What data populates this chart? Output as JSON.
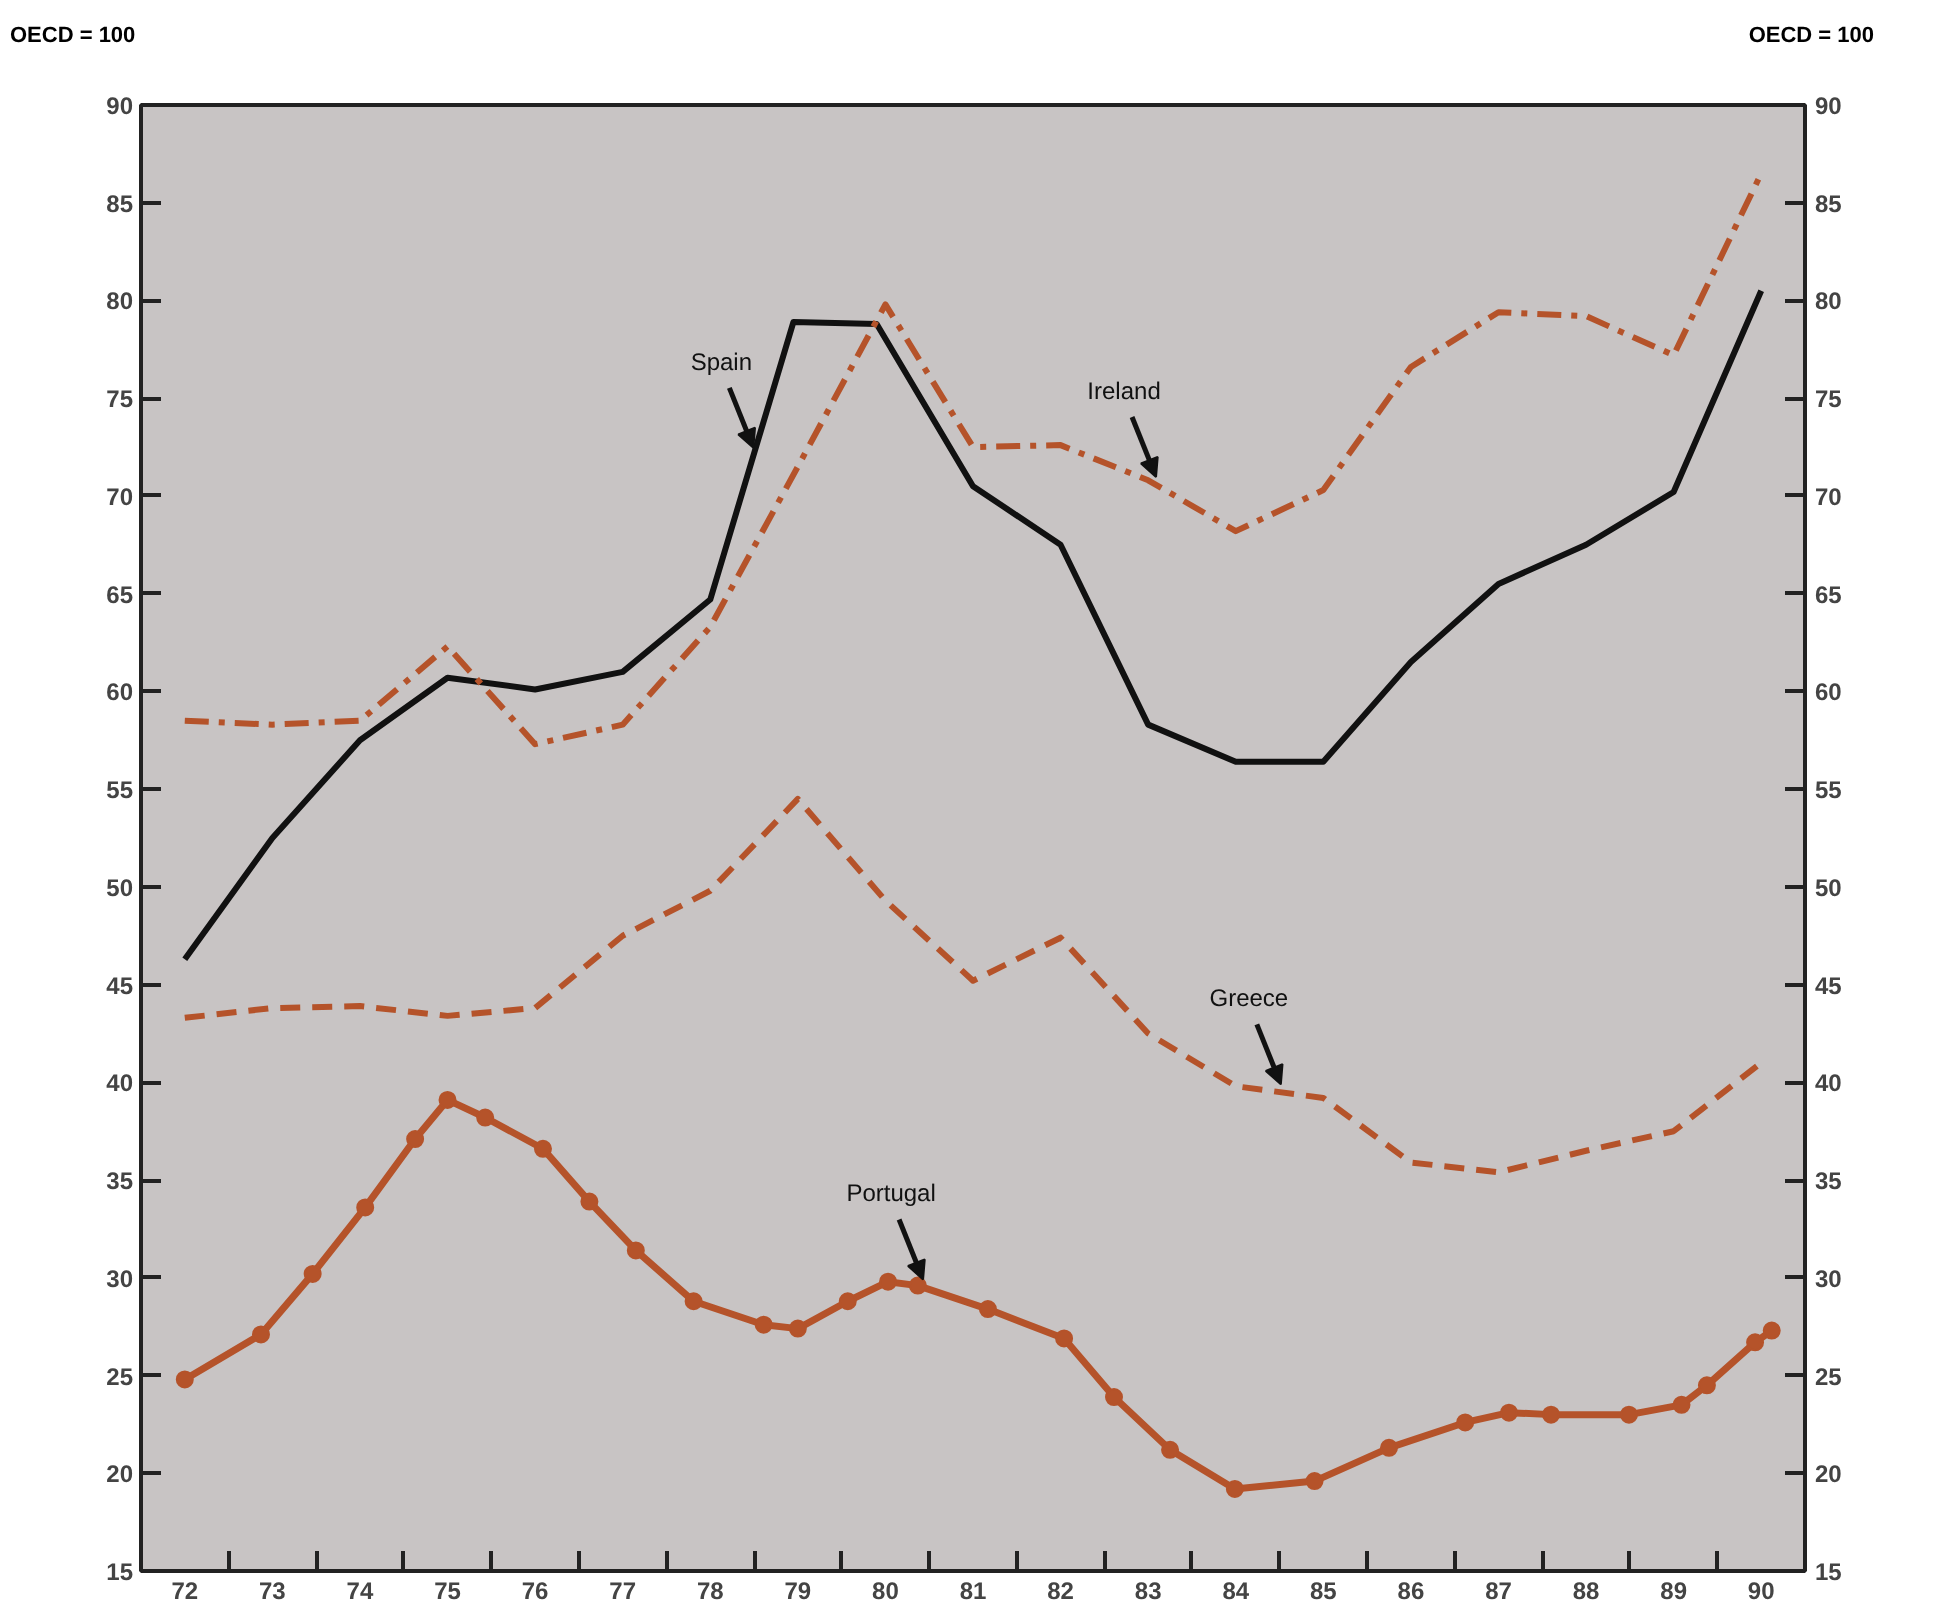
{
  "chart_data": {
    "type": "line",
    "ylabel": "OECD = 100",
    "y2label": "OECD = 100",
    "xlim": [
      71.5,
      90.5
    ],
    "ylim": [
      15,
      90
    ],
    "y2lim": [
      15,
      90
    ],
    "xticks": [
      72,
      {
        "value": 72.5,
        "label": null
      },
      73,
      {
        "value": 73.5,
        "label": null
      },
      74,
      {
        "value": 74.5,
        "label": null
      },
      75,
      {
        "value": 75.5,
        "label": null
      },
      76,
      {
        "value": 76.5,
        "label": null
      },
      77,
      {
        "value": 77.5,
        "label": null
      },
      78,
      {
        "value": 78.5,
        "label": null
      },
      79,
      {
        "value": 79.5,
        "label": null
      },
      80,
      {
        "value": 80.5,
        "label": null
      },
      81,
      {
        "value": 81.5,
        "label": null
      },
      82,
      {
        "value": 82.5,
        "label": null
      },
      83,
      {
        "value": 83.5,
        "label": null
      },
      84,
      {
        "value": 84.5,
        "label": null
      },
      85,
      {
        "value": 85.5,
        "label": null
      },
      86,
      {
        "value": 86.5,
        "label": null
      },
      87,
      {
        "value": 87.5,
        "label": null
      },
      88,
      {
        "value": 88.5,
        "label": null
      },
      89,
      {
        "value": 89.5,
        "label": null
      },
      90
    ],
    "yticks": [
      15,
      20,
      25,
      30,
      35,
      40,
      45,
      50,
      55,
      60,
      65,
      70,
      75,
      80,
      85,
      90
    ],
    "y2ticks": [
      15,
      20,
      25,
      30,
      35,
      40,
      45,
      50,
      55,
      60,
      65,
      70,
      75,
      80,
      85,
      90
    ],
    "grid": false,
    "legend": false,
    "series": [
      {
        "name": "Spain",
        "color": "#111111",
        "line_style": "solid",
        "marker": "none",
        "x": [
          72,
          73,
          74,
          75,
          76,
          77,
          78,
          78.95,
          79.9,
          81,
          82,
          83,
          84,
          85,
          86,
          87,
          88,
          89,
          90
        ],
        "values": [
          46.3,
          52.5,
          57.5,
          60.7,
          60.1,
          61,
          64.7,
          78.9,
          78.8,
          70.5,
          67.5,
          58.3,
          56.4,
          56.4,
          61.5,
          65.5,
          67.5,
          70.2,
          80.5
        ]
      },
      {
        "name": "Ireland",
        "color": "#b5532a",
        "line_style": "dashdot",
        "marker": "none",
        "x": [
          72,
          73,
          74,
          75,
          76,
          77,
          78,
          79,
          80,
          81,
          82,
          83,
          84,
          85,
          86,
          87,
          88,
          89,
          90
        ],
        "values": [
          58.5,
          58.3,
          58.5,
          62.3,
          57.3,
          58.3,
          63.3,
          71.5,
          79.8,
          72.5,
          72.6,
          70.8,
          68.2,
          70.3,
          76.6,
          79.4,
          79.2,
          77.2,
          86.5
        ]
      },
      {
        "name": "Greece",
        "color": "#b5532a",
        "line_style": "dashed",
        "marker": "none",
        "x": [
          72,
          73,
          74,
          75,
          76,
          77,
          78,
          79,
          80,
          81,
          82,
          83,
          84,
          85,
          86,
          87,
          88,
          89,
          90
        ],
        "values": [
          43.3,
          43.8,
          43.9,
          43.4,
          43.8,
          47.5,
          49.8,
          54.5,
          49.3,
          45.2,
          47.4,
          42.5,
          39.8,
          39.2,
          35.9,
          35.4,
          36.5,
          37.5,
          41
        ]
      },
      {
        "name": "Portugal",
        "color": "#b5532a",
        "line_style": "solid",
        "marker": "circle",
        "x": [
          72,
          72.87,
          73.46,
          74.06,
          74.63,
          75,
          75.43,
          76.09,
          76.62,
          77.15,
          77.81,
          78.61,
          79,
          79.57,
          80.03,
          80.37,
          81.17,
          82.04,
          82.61,
          83.25,
          83.99,
          84.9,
          85.75,
          86.62,
          87.12,
          87.6,
          88.49,
          89.09,
          89.38,
          89.93,
          90.12
        ],
        "values": [
          24.8,
          27.1,
          30.2,
          33.6,
          37.1,
          39.1,
          38.2,
          36.6,
          33.9,
          31.4,
          28.8,
          27.6,
          27.4,
          28.8,
          29.8,
          29.6,
          28.4,
          26.9,
          23.9,
          21.2,
          19.2,
          19.6,
          21.3,
          22.6,
          23.1,
          23,
          23,
          23.5,
          24.5,
          26.7,
          27.3
        ]
      }
    ]
  }
}
